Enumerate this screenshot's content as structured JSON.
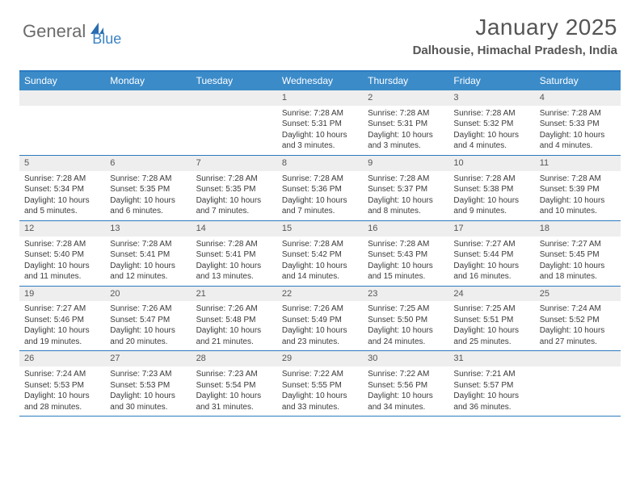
{
  "logo": {
    "text1": "General",
    "text2": "Blue",
    "color_general": "#6b6b6b",
    "color_blue": "#3b82c4",
    "icon_color": "#2b6cb0"
  },
  "title": "January 2025",
  "location": "Dalhousie, Himachal Pradesh, India",
  "header_bg": "#3b8bc9",
  "border_color": "#2b7bbf",
  "daynum_bg": "#eeeeee",
  "day_names": [
    "Sunday",
    "Monday",
    "Tuesday",
    "Wednesday",
    "Thursday",
    "Friday",
    "Saturday"
  ],
  "weeks": [
    [
      null,
      null,
      null,
      {
        "n": "1",
        "sr": "7:28 AM",
        "ss": "5:31 PM",
        "dl": "10 hours and 3 minutes."
      },
      {
        "n": "2",
        "sr": "7:28 AM",
        "ss": "5:31 PM",
        "dl": "10 hours and 3 minutes."
      },
      {
        "n": "3",
        "sr": "7:28 AM",
        "ss": "5:32 PM",
        "dl": "10 hours and 4 minutes."
      },
      {
        "n": "4",
        "sr": "7:28 AM",
        "ss": "5:33 PM",
        "dl": "10 hours and 4 minutes."
      }
    ],
    [
      {
        "n": "5",
        "sr": "7:28 AM",
        "ss": "5:34 PM",
        "dl": "10 hours and 5 minutes."
      },
      {
        "n": "6",
        "sr": "7:28 AM",
        "ss": "5:35 PM",
        "dl": "10 hours and 6 minutes."
      },
      {
        "n": "7",
        "sr": "7:28 AM",
        "ss": "5:35 PM",
        "dl": "10 hours and 7 minutes."
      },
      {
        "n": "8",
        "sr": "7:28 AM",
        "ss": "5:36 PM",
        "dl": "10 hours and 7 minutes."
      },
      {
        "n": "9",
        "sr": "7:28 AM",
        "ss": "5:37 PM",
        "dl": "10 hours and 8 minutes."
      },
      {
        "n": "10",
        "sr": "7:28 AM",
        "ss": "5:38 PM",
        "dl": "10 hours and 9 minutes."
      },
      {
        "n": "11",
        "sr": "7:28 AM",
        "ss": "5:39 PM",
        "dl": "10 hours and 10 minutes."
      }
    ],
    [
      {
        "n": "12",
        "sr": "7:28 AM",
        "ss": "5:40 PM",
        "dl": "10 hours and 11 minutes."
      },
      {
        "n": "13",
        "sr": "7:28 AM",
        "ss": "5:41 PM",
        "dl": "10 hours and 12 minutes."
      },
      {
        "n": "14",
        "sr": "7:28 AM",
        "ss": "5:41 PM",
        "dl": "10 hours and 13 minutes."
      },
      {
        "n": "15",
        "sr": "7:28 AM",
        "ss": "5:42 PM",
        "dl": "10 hours and 14 minutes."
      },
      {
        "n": "16",
        "sr": "7:28 AM",
        "ss": "5:43 PM",
        "dl": "10 hours and 15 minutes."
      },
      {
        "n": "17",
        "sr": "7:27 AM",
        "ss": "5:44 PM",
        "dl": "10 hours and 16 minutes."
      },
      {
        "n": "18",
        "sr": "7:27 AM",
        "ss": "5:45 PM",
        "dl": "10 hours and 18 minutes."
      }
    ],
    [
      {
        "n": "19",
        "sr": "7:27 AM",
        "ss": "5:46 PM",
        "dl": "10 hours and 19 minutes."
      },
      {
        "n": "20",
        "sr": "7:26 AM",
        "ss": "5:47 PM",
        "dl": "10 hours and 20 minutes."
      },
      {
        "n": "21",
        "sr": "7:26 AM",
        "ss": "5:48 PM",
        "dl": "10 hours and 21 minutes."
      },
      {
        "n": "22",
        "sr": "7:26 AM",
        "ss": "5:49 PM",
        "dl": "10 hours and 23 minutes."
      },
      {
        "n": "23",
        "sr": "7:25 AM",
        "ss": "5:50 PM",
        "dl": "10 hours and 24 minutes."
      },
      {
        "n": "24",
        "sr": "7:25 AM",
        "ss": "5:51 PM",
        "dl": "10 hours and 25 minutes."
      },
      {
        "n": "25",
        "sr": "7:24 AM",
        "ss": "5:52 PM",
        "dl": "10 hours and 27 minutes."
      }
    ],
    [
      {
        "n": "26",
        "sr": "7:24 AM",
        "ss": "5:53 PM",
        "dl": "10 hours and 28 minutes."
      },
      {
        "n": "27",
        "sr": "7:23 AM",
        "ss": "5:53 PM",
        "dl": "10 hours and 30 minutes."
      },
      {
        "n": "28",
        "sr": "7:23 AM",
        "ss": "5:54 PM",
        "dl": "10 hours and 31 minutes."
      },
      {
        "n": "29",
        "sr": "7:22 AM",
        "ss": "5:55 PM",
        "dl": "10 hours and 33 minutes."
      },
      {
        "n": "30",
        "sr": "7:22 AM",
        "ss": "5:56 PM",
        "dl": "10 hours and 34 minutes."
      },
      {
        "n": "31",
        "sr": "7:21 AM",
        "ss": "5:57 PM",
        "dl": "10 hours and 36 minutes."
      },
      null
    ]
  ],
  "labels": {
    "sunrise": "Sunrise:",
    "sunset": "Sunset:",
    "daylight": "Daylight:"
  }
}
